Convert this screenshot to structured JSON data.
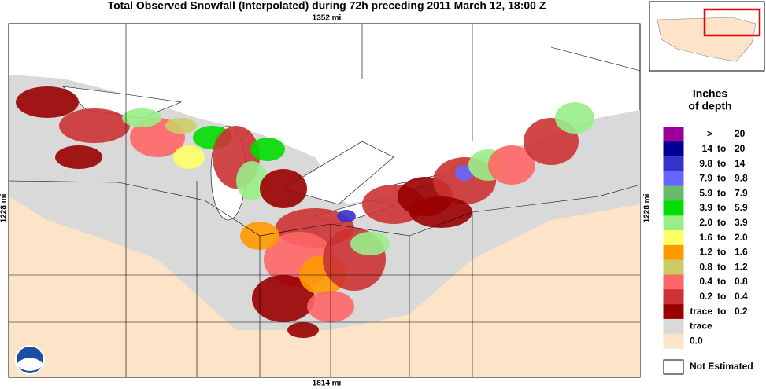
{
  "header": {
    "title": "Total Observed Snowfall (Interpolated) during 72h preceding 2011 March 12, 18:00 Z",
    "top_scale": "1352 mi",
    "bottom_scale": "1814 mi",
    "left_scale": "1228 mi",
    "right_scale": "1228 mi"
  },
  "legend": {
    "title_line1": "Inches",
    "title_line2": "of depth",
    "sep": "to",
    "items": [
      {
        "color": "#990099",
        "low": ">",
        "high": "20"
      },
      {
        "color": "#000099",
        "low": "14",
        "high": "20"
      },
      {
        "color": "#3333cc",
        "low": "9.8",
        "high": "14"
      },
      {
        "color": "#6666ff",
        "low": "7.9",
        "high": "9.8"
      },
      {
        "color": "#66bb66",
        "low": "5.9",
        "high": "7.9"
      },
      {
        "color": "#00dd00",
        "low": "3.9",
        "high": "5.9"
      },
      {
        "color": "#99ee88",
        "low": "2.0",
        "high": "3.9"
      },
      {
        "color": "#ffff66",
        "low": "1.6",
        "high": "2.0"
      },
      {
        "color": "#ff9900",
        "low": "1.2",
        "high": "1.6"
      },
      {
        "color": "#cccc66",
        "low": "0.8",
        "high": "1.2"
      },
      {
        "color": "#ff6666",
        "low": "0.4",
        "high": "0.8"
      },
      {
        "color": "#cc3333",
        "low": "0.2",
        "high": "0.4"
      },
      {
        "color": "#990000",
        "low": "trace",
        "high": "0.2"
      },
      {
        "color": "#d9d9d9",
        "low": "trace"
      },
      {
        "color": "#fde3c8",
        "low": "0.0"
      }
    ],
    "not_estimated": "Not Estimated"
  }
}
